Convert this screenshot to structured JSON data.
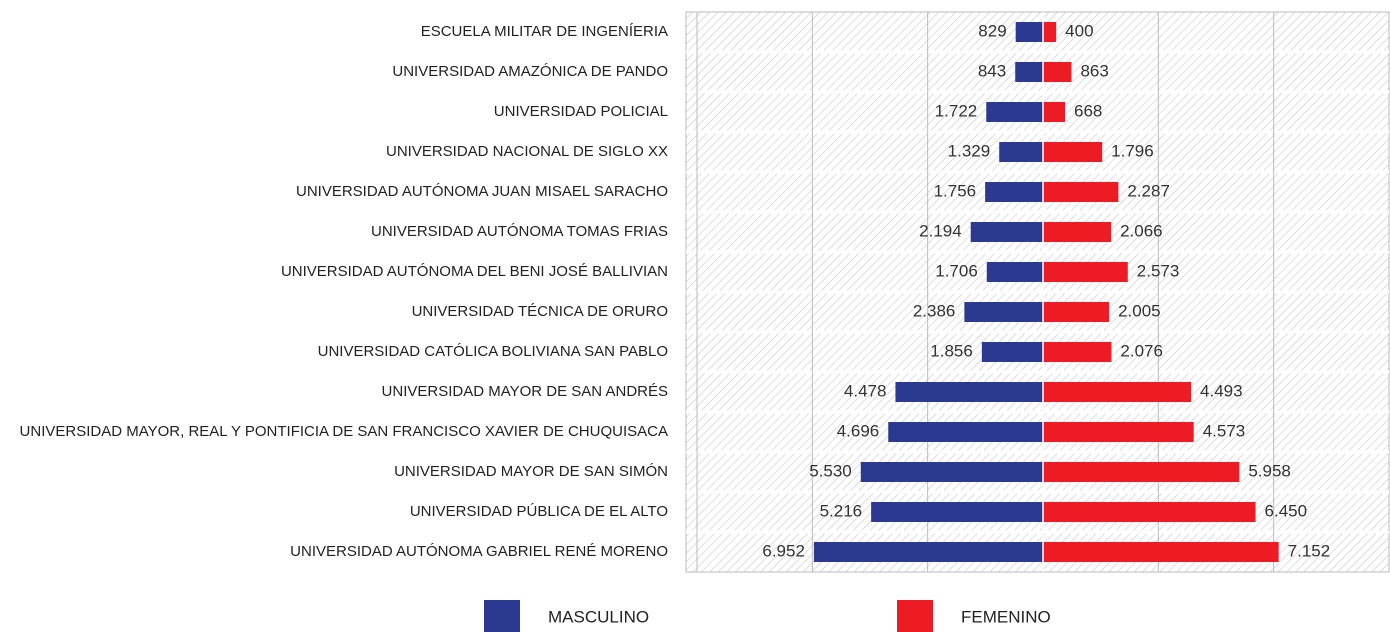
{
  "chart_data": {
    "type": "butterfly-bar",
    "categories": [
      "ESCUELA MILITAR DE INGENÍERIA",
      "UNIVERSIDAD AMAZÓNICA DE PANDO",
      "UNIVERSIDAD POLICIAL",
      "UNIVERSIDAD NACIONAL DE SIGLO XX",
      "UNIVERSIDAD AUTÓNOMA JUAN MISAEL SARACHO",
      "UNIVERSIDAD AUTÓNOMA TOMAS FRIAS",
      "UNIVERSIDAD AUTÓNOMA DEL BENI JOSÉ BALLIVIAN",
      "UNIVERSIDAD TÉCNICA DE ORURO",
      "UNIVERSIDAD CATÓLICA BOLIVIANA SAN PABLO",
      "UNIVERSIDAD MAYOR DE SAN ANDRÉS",
      "UNIVERSIDAD MAYOR, REAL Y PONTIFICIA DE SAN FRANCISCO XAVIER DE CHUQUISACA",
      "UNIVERSIDAD MAYOR DE SAN SIMÓN",
      "UNIVERSIDAD PÚBLICA DE EL ALTO",
      "UNIVERSIDAD AUTÓNOMA GABRIEL RENÉ MORENO"
    ],
    "series": [
      {
        "name": "MASCULINO",
        "color": "#2b3990",
        "side": "left",
        "values": [
          829,
          843,
          1722,
          1329,
          1756,
          2194,
          1706,
          2386,
          1856,
          4478,
          4696,
          5530,
          5216,
          6952
        ],
        "value_labels": [
          "829",
          "843",
          "1.722",
          "1.329",
          "1.756",
          "2.194",
          "1.706",
          "2.386",
          "1.856",
          "4.478",
          "4.696",
          "5.530",
          "5.216",
          "6.952"
        ]
      },
      {
        "name": "FEMENINO",
        "color": "#ed1c24",
        "side": "right",
        "values": [
          400,
          863,
          668,
          1796,
          2287,
          2066,
          2573,
          2005,
          2076,
          4493,
          4573,
          5958,
          6450,
          7152
        ],
        "value_labels": [
          "400",
          "863",
          "668",
          "1.796",
          "2.287",
          "2.066",
          "2.573",
          "2.005",
          "2.076",
          "4.493",
          "4.573",
          "5.958",
          "6.450",
          "7.152"
        ]
      }
    ],
    "xlim": [
      0,
      10500
    ],
    "xticks": [
      0,
      3500,
      7000,
      10500
    ],
    "grid": true
  }
}
